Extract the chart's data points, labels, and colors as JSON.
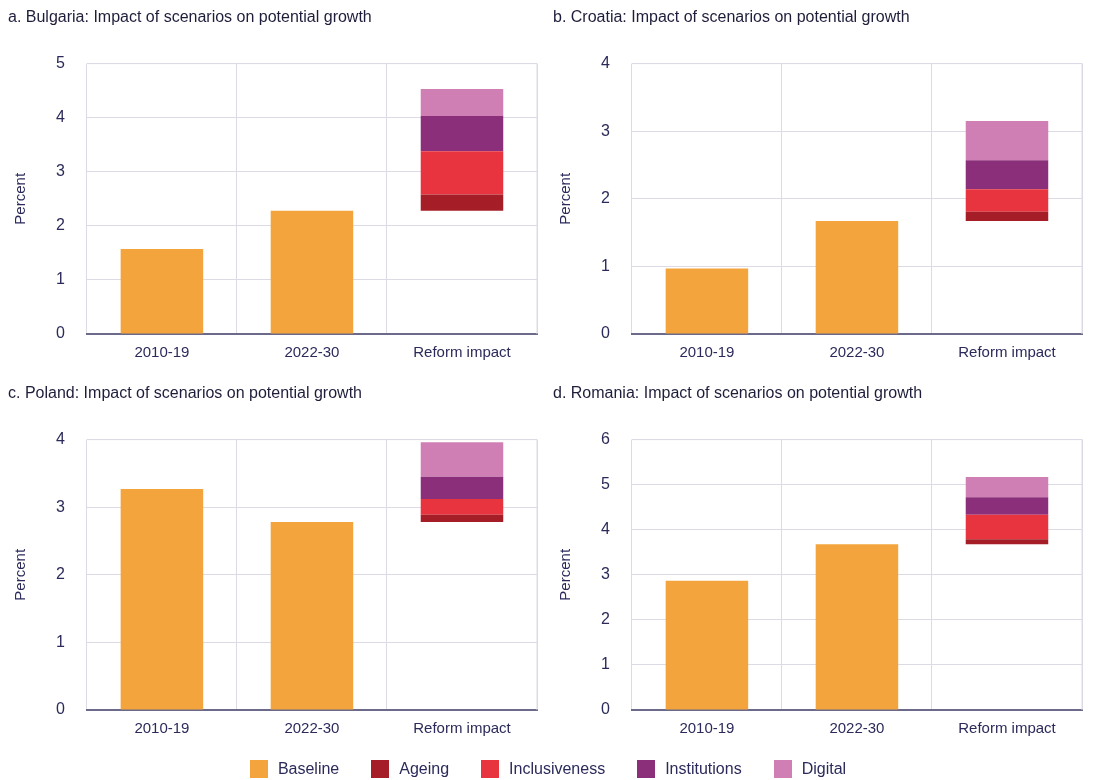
{
  "chart_data": [
    {
      "type": "bar",
      "title": "a. Bulgaria: Impact of scenarios on potential growth",
      "ylabel": "Percent",
      "categories": [
        "2010-19",
        "2022-30",
        "Reform impact"
      ],
      "ylim": [
        0,
        5
      ],
      "yticks": [
        0,
        1,
        2,
        3,
        4,
        5
      ],
      "grid": true,
      "series": [
        {
          "color": "#f4a43c",
          "values": [
            1.57,
            2.28,
            null
          ]
        },
        {
          "color": "#a51e27",
          "base": [
            null,
            null,
            2.28
          ],
          "values": [
            null,
            null,
            0.3
          ]
        },
        {
          "color": "#e8343e",
          "base": [
            null,
            null,
            2.58
          ],
          "values": [
            null,
            null,
            0.8
          ]
        },
        {
          "color": "#8c2f7a",
          "base": [
            null,
            null,
            3.38
          ],
          "values": [
            null,
            null,
            0.65
          ]
        },
        {
          "color": "#d07fb5",
          "base": [
            null,
            null,
            4.03
          ],
          "values": [
            null,
            null,
            0.5
          ]
        }
      ]
    },
    {
      "type": "bar",
      "title": "b. Croatia: Impact of scenarios on potential growth",
      "ylabel": "Percent",
      "categories": [
        "2010-19",
        "2022-30",
        "Reform impact"
      ],
      "ylim": [
        0,
        4
      ],
      "yticks": [
        0,
        1,
        2,
        3,
        4
      ],
      "grid": true,
      "series": [
        {
          "color": "#f4a43c",
          "values": [
            0.97,
            1.67,
            null
          ]
        },
        {
          "color": "#a51e27",
          "base": [
            null,
            null,
            1.67
          ],
          "values": [
            null,
            null,
            0.14
          ]
        },
        {
          "color": "#e8343e",
          "base": [
            null,
            null,
            1.81
          ],
          "values": [
            null,
            null,
            0.33
          ]
        },
        {
          "color": "#8c2f7a",
          "base": [
            null,
            null,
            2.14
          ],
          "values": [
            null,
            null,
            0.43
          ]
        },
        {
          "color": "#d07fb5",
          "base": [
            null,
            null,
            2.57
          ],
          "values": [
            null,
            null,
            0.58
          ]
        }
      ]
    },
    {
      "type": "bar",
      "title": "c. Poland: Impact of scenarios on potential growth",
      "ylabel": "Percent",
      "categories": [
        "2010-19",
        "2022-30",
        "Reform impact"
      ],
      "ylim": [
        0,
        4
      ],
      "yticks": [
        0,
        1,
        2,
        3,
        4
      ],
      "grid": true,
      "series": [
        {
          "color": "#f4a43c",
          "values": [
            3.27,
            2.78,
            null
          ]
        },
        {
          "color": "#a51e27",
          "base": [
            null,
            null,
            2.78
          ],
          "values": [
            null,
            null,
            0.11
          ]
        },
        {
          "color": "#e8343e",
          "base": [
            null,
            null,
            2.89
          ],
          "values": [
            null,
            null,
            0.23
          ]
        },
        {
          "color": "#8c2f7a",
          "base": [
            null,
            null,
            3.12
          ],
          "values": [
            null,
            null,
            0.33
          ]
        },
        {
          "color": "#d07fb5",
          "base": [
            null,
            null,
            3.45
          ],
          "values": [
            null,
            null,
            0.51
          ]
        }
      ]
    },
    {
      "type": "bar",
      "title": "d. Romania: Impact of scenarios on potential growth",
      "ylabel": "Percent",
      "categories": [
        "2010-19",
        "2022-30",
        "Reform impact"
      ],
      "ylim": [
        0,
        6
      ],
      "yticks": [
        0,
        1,
        2,
        3,
        4,
        5,
        6
      ],
      "grid": true,
      "legend": "bottom",
      "series": [
        {
          "name": "Baseline",
          "color": "#f4a43c",
          "values": [
            2.87,
            3.68,
            null
          ]
        },
        {
          "name": "Ageing",
          "color": "#a51e27",
          "base": [
            null,
            null,
            3.68
          ],
          "values": [
            null,
            null,
            0.11
          ]
        },
        {
          "name": "Inclusiveness",
          "color": "#e8343e",
          "base": [
            null,
            null,
            3.79
          ],
          "values": [
            null,
            null,
            0.54
          ]
        },
        {
          "name": "Institutions",
          "color": "#8c2f7a",
          "base": [
            null,
            null,
            4.33
          ],
          "values": [
            null,
            null,
            0.39
          ]
        },
        {
          "name": "Digital",
          "color": "#d07fb5",
          "base": [
            null,
            null,
            4.72
          ],
          "values": [
            null,
            null,
            0.45
          ]
        }
      ]
    }
  ]
}
